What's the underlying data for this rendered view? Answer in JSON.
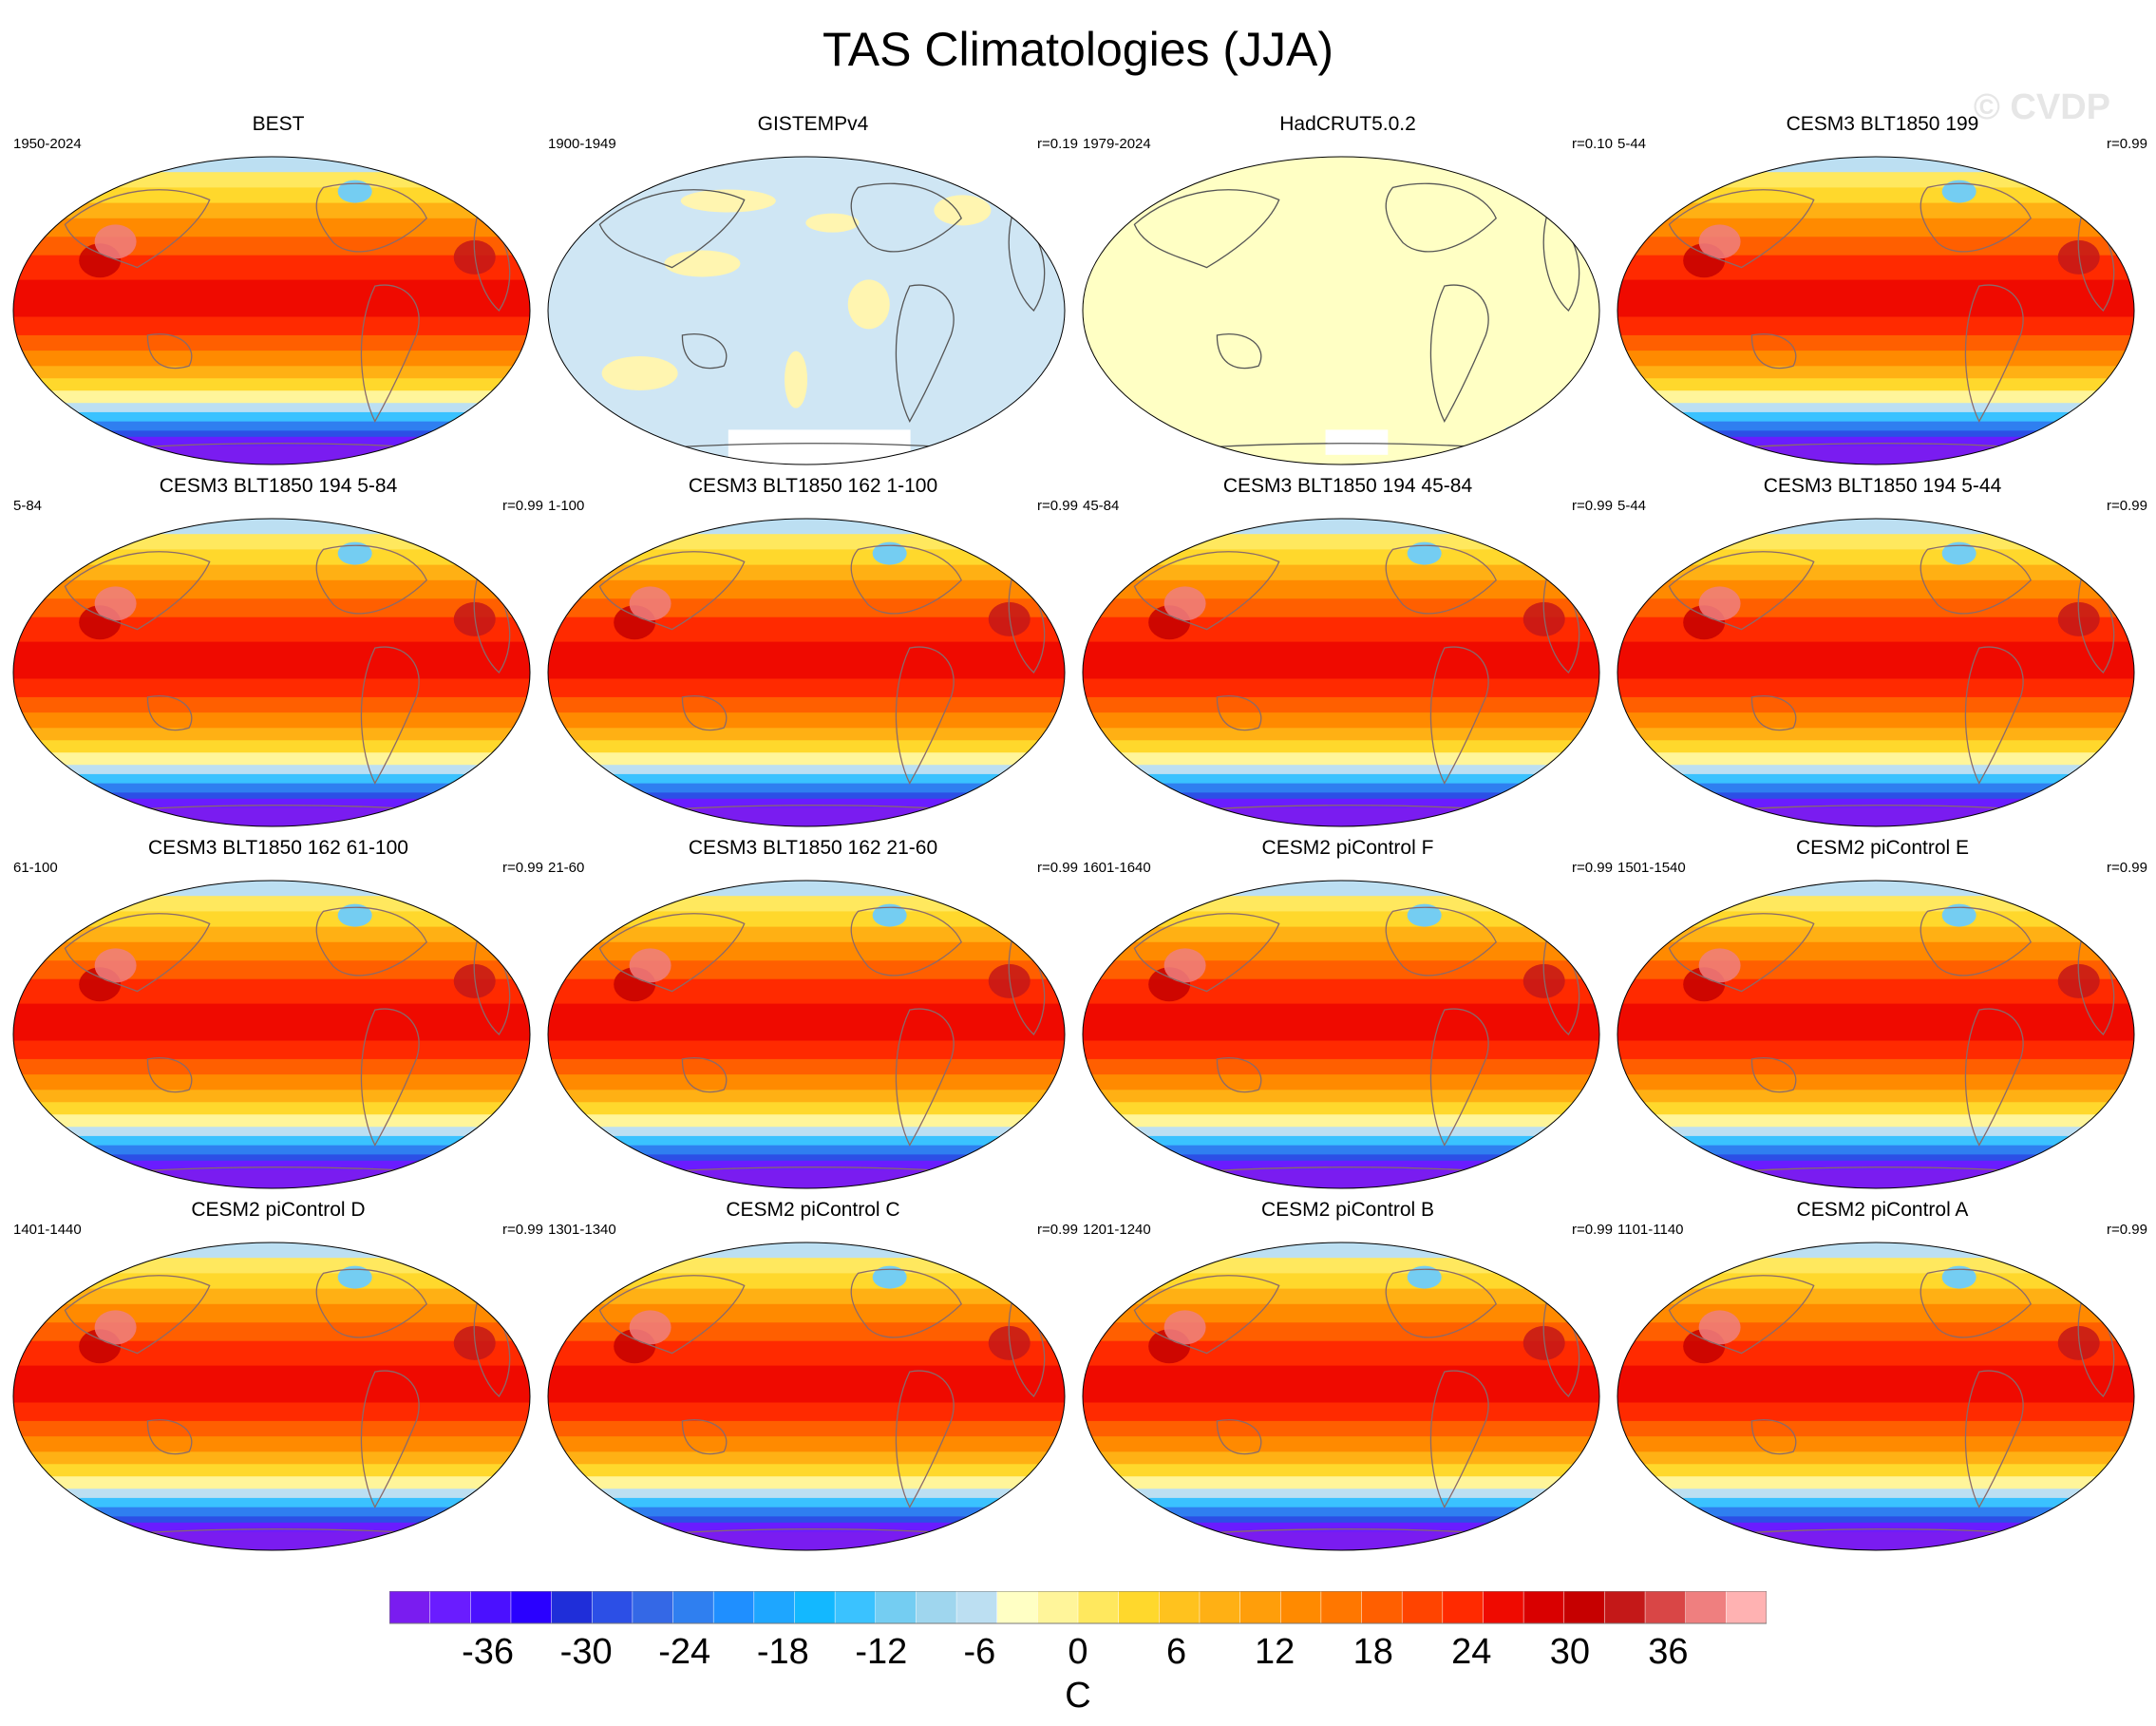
{
  "figure": {
    "title": "TAS Climatologies (JJA)",
    "watermark": "© CVDP",
    "colorbar_unit": "C"
  },
  "chart_data": {
    "type": "heatmap",
    "variable": "TAS",
    "season": "JJA",
    "map_projection": "robinson-like global",
    "units": "C",
    "colorbar": {
      "min": -42,
      "max": 42,
      "interval": 2,
      "tick_labels": [
        "-36",
        "-30",
        "-24",
        "-18",
        "-12",
        "-6",
        "0",
        "6",
        "12",
        "18",
        "24",
        "30",
        "36"
      ],
      "colors": [
        "#7a1cf0",
        "#6a1cff",
        "#4b10ff",
        "#2a00ff",
        "#1f2ed9",
        "#2c4fe6",
        "#3468e6",
        "#2f7ff0",
        "#1f8fff",
        "#1ea6ff",
        "#13b8ff",
        "#3ac2ff",
        "#74cdf2",
        "#9fd6ee",
        "#bcdff2",
        "#ffffc4",
        "#fff59a",
        "#ffe85e",
        "#ffd82c",
        "#ffc21e",
        "#ffb014",
        "#ff9e0a",
        "#ff8a00",
        "#ff7700",
        "#ff5f00",
        "#ff4400",
        "#ff2a00",
        "#ef0a00",
        "#d90000",
        "#c60000",
        "#c41818",
        "#d94646",
        "#ef7f7f",
        "#ffb2b2"
      ]
    },
    "panels": [
      {
        "title": "BEST",
        "period": "1950-2024",
        "r": "",
        "field": "full"
      },
      {
        "title": "GISTEMPv4",
        "period": "1900-1949",
        "r": "r=0.19",
        "field": "anomaly-small"
      },
      {
        "title": "HadCRUT5.0.2",
        "period": "1979-2024",
        "r": "r=0.10",
        "field": "anomaly-near-zero"
      },
      {
        "title": "CESM3 BLT1850 199",
        "period": "5-44",
        "r": "r=0.99",
        "field": "full"
      },
      {
        "title": "CESM3 BLT1850 194 5-84",
        "period": "5-84",
        "r": "r=0.99",
        "field": "full"
      },
      {
        "title": "CESM3 BLT1850 162 1-100",
        "period": "1-100",
        "r": "r=0.99",
        "field": "full"
      },
      {
        "title": "CESM3 BLT1850 194 45-84",
        "period": "45-84",
        "r": "r=0.99",
        "field": "full"
      },
      {
        "title": "CESM3 BLT1850 194 5-44",
        "period": "5-44",
        "r": "r=0.99",
        "field": "full"
      },
      {
        "title": "CESM3 BLT1850 162 61-100",
        "period": "61-100",
        "r": "r=0.99",
        "field": "full"
      },
      {
        "title": "CESM3 BLT1850 162 21-60",
        "period": "21-60",
        "r": "r=0.99",
        "field": "full"
      },
      {
        "title": "CESM2 piControl F",
        "period": "1601-1640",
        "r": "r=0.99",
        "field": "full"
      },
      {
        "title": "CESM2 piControl E",
        "period": "1501-1540",
        "r": "r=0.99",
        "field": "full"
      },
      {
        "title": "CESM2 piControl D",
        "period": "1401-1440",
        "r": "r=0.99",
        "field": "full"
      },
      {
        "title": "CESM2 piControl C",
        "period": "1301-1340",
        "r": "r=0.99",
        "field": "full"
      },
      {
        "title": "CESM2 piControl B",
        "period": "1201-1240",
        "r": "r=0.99",
        "field": "full"
      },
      {
        "title": "CESM2 piControl A",
        "period": "1101-1140",
        "r": "r=0.99",
        "field": "full"
      }
    ]
  }
}
